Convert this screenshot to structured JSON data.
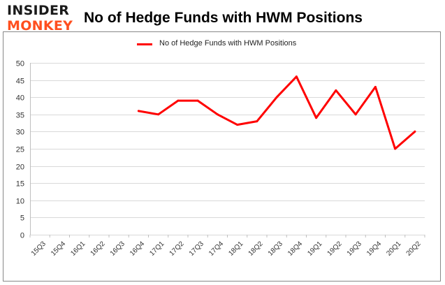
{
  "logo": {
    "line1": "INSIDER",
    "line2": "MONKEY"
  },
  "colors": {
    "series": "#ff0000",
    "logo_bottom": "#ff4f1f",
    "grid": "#d9d9d9",
    "border": "#888888"
  },
  "chart_data": {
    "type": "line",
    "title": "No of Hedge Funds with HWM Positions",
    "xlabel": "",
    "ylabel": "",
    "legend": "top-center",
    "grid": true,
    "ylim": [
      0,
      50
    ],
    "yticks": [
      0,
      5,
      10,
      15,
      20,
      25,
      30,
      35,
      40,
      45,
      50
    ],
    "categories": [
      "15Q3",
      "15Q4",
      "16Q1",
      "16Q2",
      "16Q3",
      "16Q4",
      "17Q1",
      "17Q2",
      "17Q3",
      "17Q4",
      "18Q1",
      "18Q2",
      "18Q3",
      "18Q4",
      "19Q1",
      "19Q2",
      "19Q3",
      "19Q4",
      "20Q1",
      "20Q2"
    ],
    "series": [
      {
        "name": "No of Hedge Funds with HWM Positions",
        "values": [
          null,
          null,
          null,
          null,
          null,
          36,
          35,
          39,
          39,
          35,
          32,
          33,
          40,
          46,
          34,
          42,
          35,
          43,
          25,
          30
        ]
      }
    ]
  }
}
